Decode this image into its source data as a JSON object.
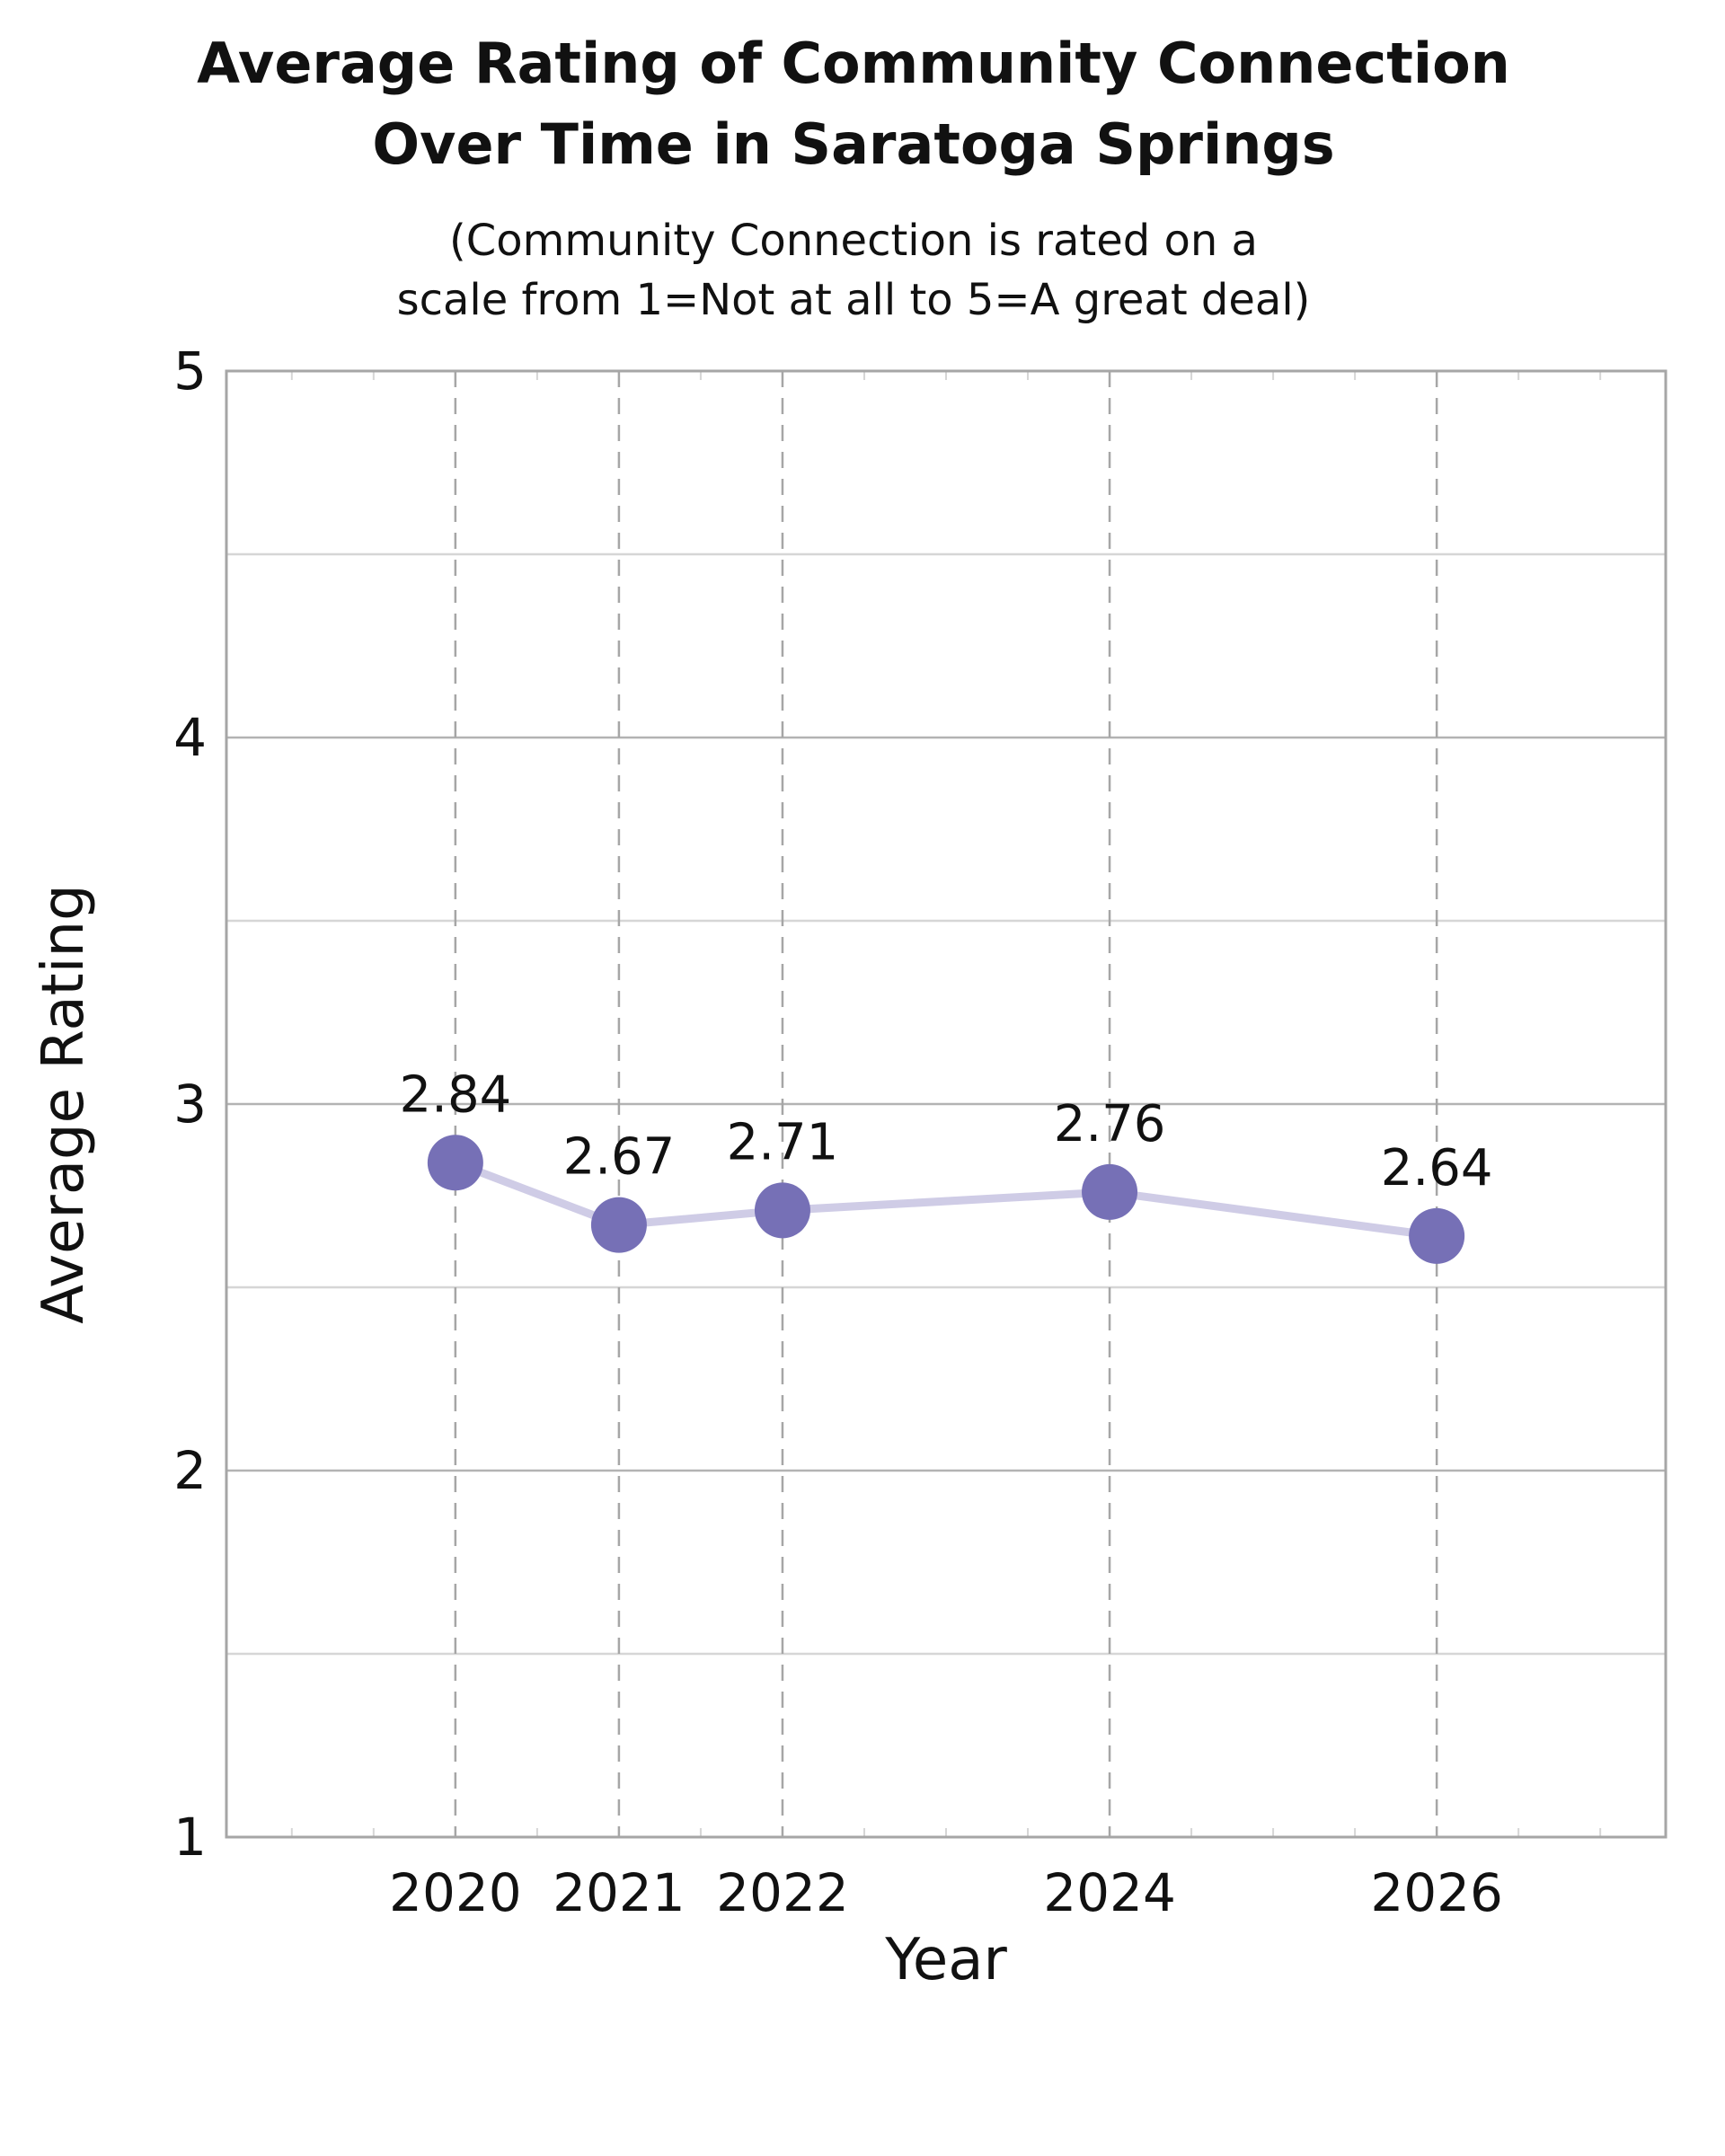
{
  "chart_data": {
    "type": "line",
    "title_lines": [
      "Average Rating of Community Connection",
      "Over Time in Saratoga Springs"
    ],
    "subtitle_lines": [
      "(Community Connection is rated on a",
      "scale from 1=Not at all to 5=A great deal)"
    ],
    "xlabel": "Year",
    "ylabel": "Average Rating",
    "x": [
      2020,
      2021,
      2022,
      2024,
      2026
    ],
    "y": [
      2.84,
      2.67,
      2.71,
      2.76,
      2.64
    ],
    "data_labels": [
      "2.84",
      "2.67",
      "2.71",
      "2.76",
      "2.64"
    ],
    "x_ticks": [
      "2020",
      "2021",
      "2022",
      "2024",
      "2026"
    ],
    "y_ticks": [
      1,
      2,
      3,
      4,
      5
    ],
    "y_minor_ticks": [
      1.5,
      2.5,
      3.5,
      4.5
    ],
    "xlim": [
      2018.6,
      2027.4
    ],
    "ylim": [
      1,
      5
    ],
    "grid": true,
    "legend": "none",
    "colors": {
      "marker": "#7670b6",
      "line": "#cfcce6",
      "grid_major": "#b3b3b3",
      "grid_minor": "#d6d6d6",
      "grid_vertical_dashed": "#a6a6a6",
      "frame": "#a6a6a6"
    }
  }
}
